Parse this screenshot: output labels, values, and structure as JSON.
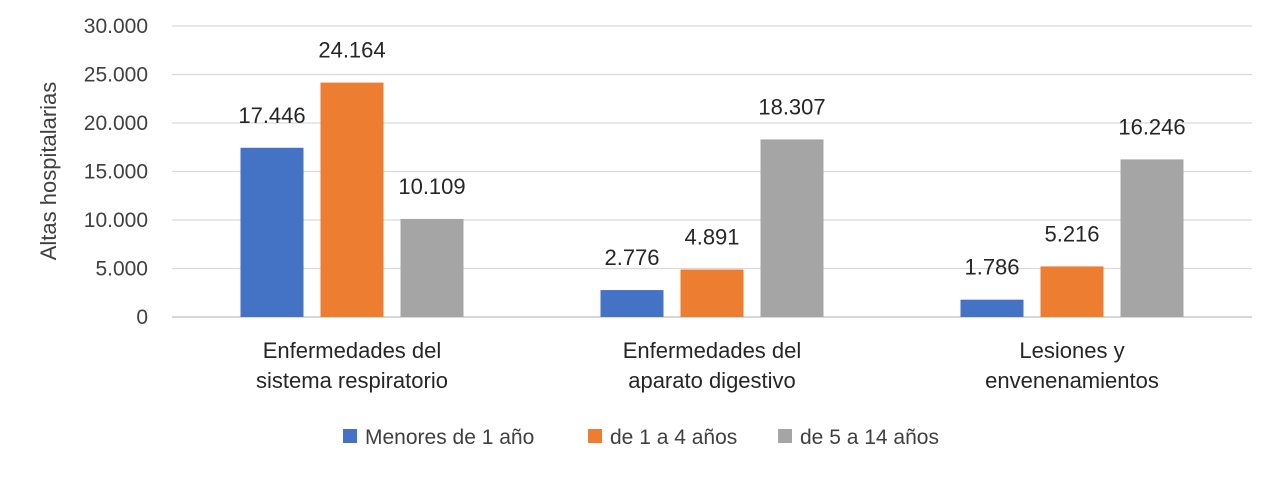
{
  "chart_data": {
    "type": "bar",
    "title": "",
    "xlabel": "",
    "ylabel": "Altas hospitalarias",
    "ylim": [
      0,
      30000
    ],
    "yticks": [
      0,
      5000,
      10000,
      15000,
      20000,
      25000,
      30000
    ],
    "ytick_labels": [
      "0",
      "5.000",
      "10.000",
      "15.000",
      "20.000",
      "25.000",
      "30.000"
    ],
    "grid": true,
    "legend_position": "bottom",
    "categories": [
      [
        "Enfermedades del",
        "sistema respiratorio"
      ],
      [
        "Enfermedades del",
        "aparato digestivo"
      ],
      [
        "Lesiones y",
        "envenenamientos"
      ]
    ],
    "series": [
      {
        "name": "Menores de 1 año",
        "color": "#4472c4",
        "values": [
          17446,
          2776,
          1786
        ],
        "labels": [
          "17.446",
          "2.776",
          "1.786"
        ]
      },
      {
        "name": "de 1 a 4 años",
        "color": "#ed7d31",
        "values": [
          24164,
          4891,
          5216
        ],
        "labels": [
          "24.164",
          "4.891",
          "5.216"
        ]
      },
      {
        "name": "de 5 a 14 años",
        "color": "#a5a5a5",
        "values": [
          10109,
          18307,
          16246
        ],
        "labels": [
          "10.109",
          "18.307",
          "16.246"
        ]
      }
    ]
  }
}
